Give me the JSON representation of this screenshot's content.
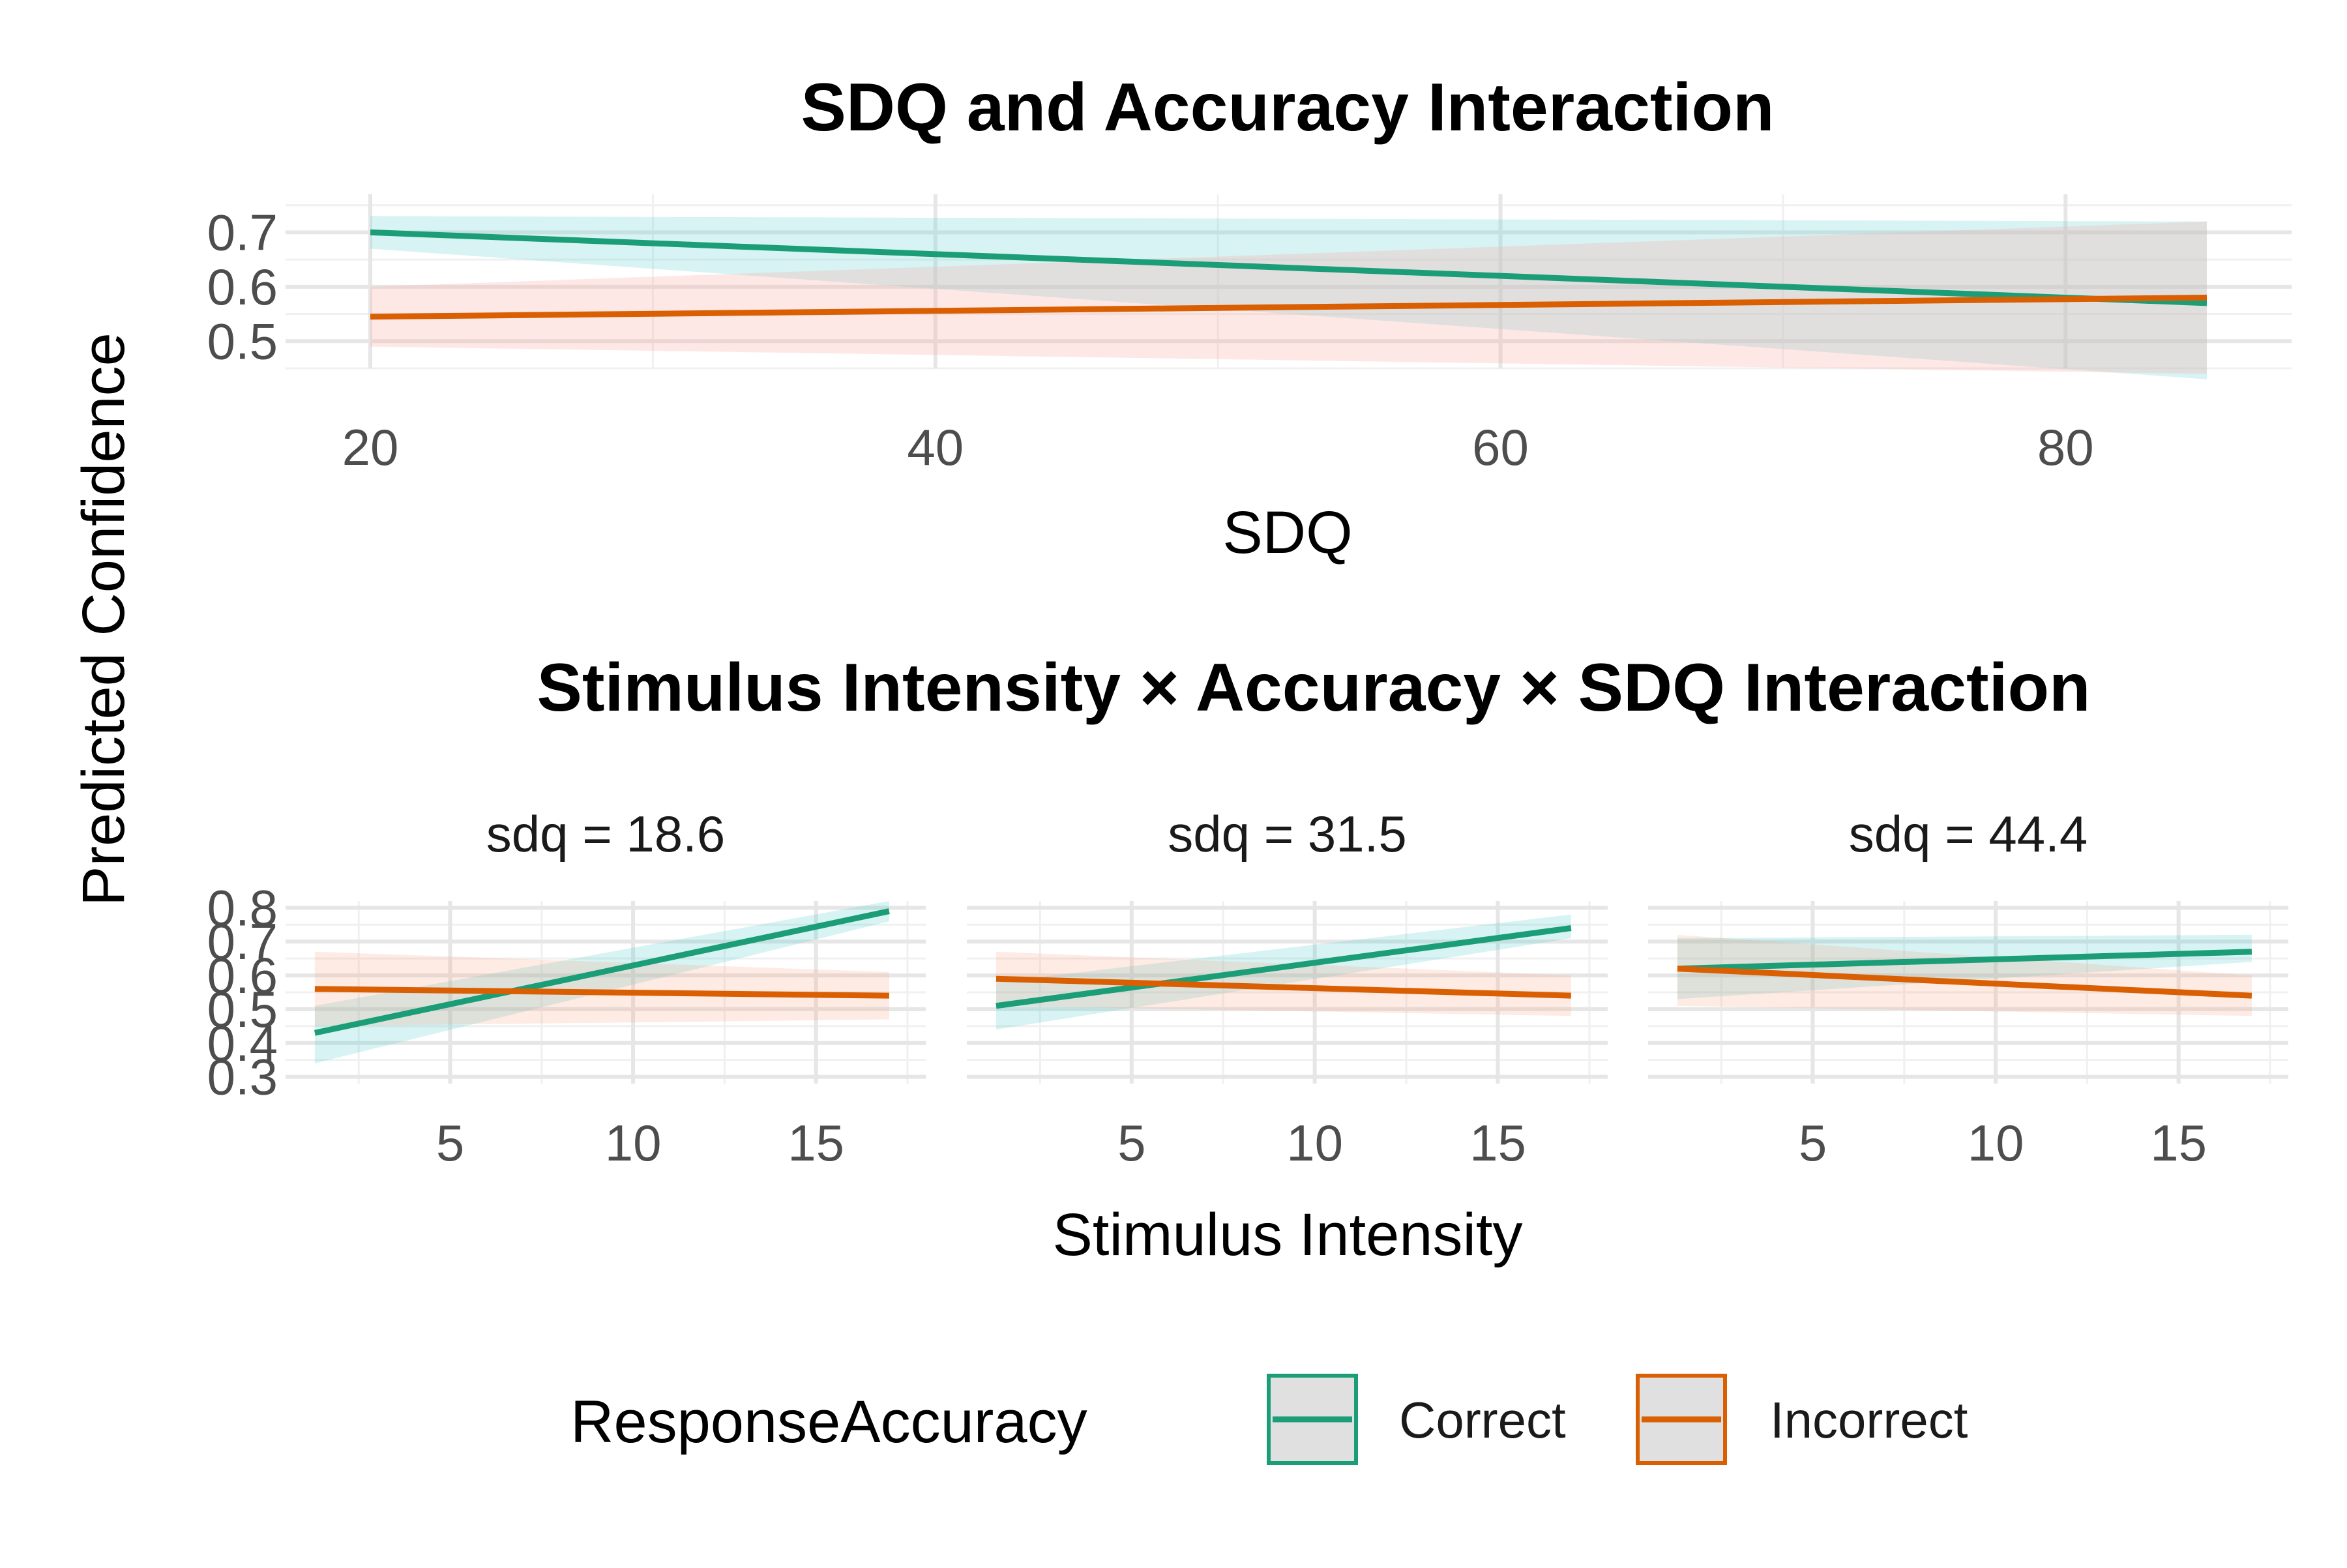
{
  "colors": {
    "Correct": "#1b9e77",
    "Incorrect": "#d95f02",
    "ribbon_correct_top": "#7ad8d8",
    "ribbon_incorrect_top": "#f8b4ad"
  },
  "legend": {
    "title": "ResponseAccuracy",
    "items": [
      "Correct",
      "Incorrect"
    ]
  },
  "chart_data": [
    {
      "type": "line",
      "title": "SDQ and Accuracy Interaction",
      "xlabel": "SDQ",
      "ylabel": "Predicted Confidence",
      "xlim": [
        17,
        88
      ],
      "ylim": [
        0.45,
        0.77
      ],
      "xticks": [
        20,
        40,
        60,
        80
      ],
      "yticks": [
        0.5,
        0.6,
        0.7
      ],
      "grid": true,
      "series": [
        {
          "name": "Correct",
          "x": [
            20,
            85
          ],
          "y": [
            0.7,
            0.57
          ],
          "lower": [
            0.67,
            0.43
          ],
          "upper": [
            0.73,
            0.72
          ]
        },
        {
          "name": "Incorrect",
          "x": [
            20,
            85
          ],
          "y": [
            0.545,
            0.58
          ],
          "lower": [
            0.49,
            0.44
          ],
          "upper": [
            0.6,
            0.72
          ]
        }
      ]
    },
    {
      "type": "line",
      "title": "Stimulus Intensity × Accuracy × SDQ Interaction",
      "xlabel": "Stimulus Intensity",
      "ylabel": "Predicted Confidence",
      "xlim": [
        0.5,
        18
      ],
      "ylim": [
        0.28,
        0.82
      ],
      "xticks": [
        5,
        10,
        15
      ],
      "yticks": [
        0.3,
        0.4,
        0.5,
        0.6,
        0.7,
        0.8
      ],
      "grid": true,
      "facets": [
        {
          "label": "sdq = 18.6",
          "series": [
            {
              "name": "Correct",
              "x": [
                1.3,
                17
              ],
              "y": [
                0.43,
                0.79
              ],
              "lower": [
                0.34,
                0.76
              ],
              "upper": [
                0.51,
                0.82
              ]
            },
            {
              "name": "Incorrect",
              "x": [
                1.3,
                17
              ],
              "y": [
                0.56,
                0.54
              ],
              "lower": [
                0.45,
                0.47
              ],
              "upper": [
                0.67,
                0.61
              ]
            }
          ]
        },
        {
          "label": "sdq = 31.5",
          "series": [
            {
              "name": "Correct",
              "x": [
                1.3,
                17
              ],
              "y": [
                0.51,
                0.74
              ],
              "lower": [
                0.44,
                0.71
              ],
              "upper": [
                0.58,
                0.78
              ]
            },
            {
              "name": "Incorrect",
              "x": [
                1.3,
                17
              ],
              "y": [
                0.59,
                0.54
              ],
              "lower": [
                0.51,
                0.48
              ],
              "upper": [
                0.67,
                0.6
              ]
            }
          ]
        },
        {
          "label": "sdq = 44.4",
          "series": [
            {
              "name": "Correct",
              "x": [
                1.3,
                17
              ],
              "y": [
                0.62,
                0.67
              ],
              "lower": [
                0.53,
                0.64
              ],
              "upper": [
                0.71,
                0.72
              ]
            },
            {
              "name": "Incorrect",
              "x": [
                1.3,
                17
              ],
              "y": [
                0.62,
                0.54
              ],
              "lower": [
                0.51,
                0.48
              ],
              "upper": [
                0.72,
                0.6
              ]
            }
          ]
        }
      ]
    }
  ]
}
